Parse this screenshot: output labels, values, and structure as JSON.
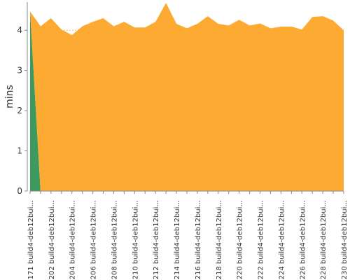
{
  "chart_data": {
    "type": "stacked-area",
    "y_label": "mins",
    "categories": [
      "#171 build4-deb12bui...",
      null,
      "#202 build4-deb12bui...",
      null,
      "#204 build4-deb12bui...",
      null,
      "#206 build4-deb12bui...",
      null,
      "#208 build4-deb12bui...",
      null,
      "#210 build4-deb12bui...",
      null,
      "#212 build4-deb12bui...",
      null,
      "#214 build4-deb12bui...",
      null,
      "#216 build4-deb12bui...",
      null,
      "#218 build4-deb12bui...",
      null,
      "#220 build4-deb12bui...",
      null,
      "#222 build4-deb12bui...",
      null,
      "#224 build4-deb12bui...",
      null,
      "#226 build4-deb12bui...",
      null,
      "#228 build4-deb12bui...",
      null,
      "#230 build4-deb12bui..."
    ],
    "series": [
      {
        "color": "#3d9a5e",
        "values": [
          4.47,
          0,
          0,
          0,
          0,
          0,
          0,
          0,
          0,
          0,
          0,
          0,
          0,
          0,
          0,
          0,
          0,
          0,
          0,
          0,
          0,
          0,
          0,
          0,
          0,
          0,
          0,
          0,
          0,
          0,
          0
        ]
      },
      {
        "color": "#fdaa33",
        "values": [
          0,
          4.1,
          4.3,
          4.02,
          3.88,
          4.1,
          4.21,
          4.3,
          4.1,
          4.21,
          4.07,
          4.07,
          4.21,
          4.68,
          4.16,
          4.05,
          4.16,
          4.35,
          4.16,
          4.12,
          4.26,
          4.12,
          4.17,
          4.05,
          4.09,
          4.09,
          4.02,
          4.33,
          4.35,
          4.24,
          4.0
        ]
      }
    ],
    "ylim": [
      0,
      4.7
    ],
    "yticks": [
      0,
      1,
      2,
      3,
      4
    ],
    "grid": true
  }
}
